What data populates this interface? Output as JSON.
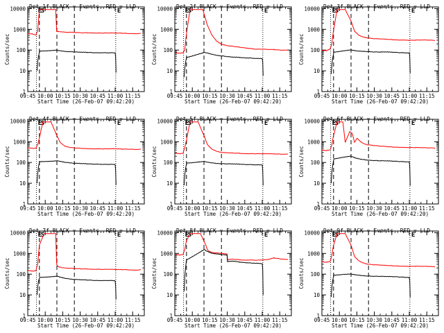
{
  "colors": {
    "events": "#000000",
    "lld": "#ff0000",
    "axis": "#000000",
    "background": "#ffffff"
  },
  "chart_data": {
    "type": "line",
    "grid": false,
    "shared": {
      "xlabel": "Start Time (26-Feb-07 09:42:20)",
      "ylabel": "Counts/sec",
      "x_ticks": [
        "09:45",
        "10:00",
        "10:15",
        "10:30",
        "10:45",
        "11:00",
        "11:15"
      ],
      "x_tick_minutes": [
        0,
        15,
        30,
        45,
        60,
        75,
        90
      ],
      "xlim_minutes": [
        0,
        100
      ],
      "yscale": "log",
      "ylim": [
        1,
        12000
      ],
      "y_ticks": [
        "1",
        "10",
        "100",
        "1000",
        "10000"
      ],
      "y_tick_values": [
        1,
        10,
        100,
        1000,
        10000
      ],
      "vlines": [
        {
          "minute": 7.5,
          "style": "dotted",
          "label": "E"
        },
        {
          "minute": 10,
          "style": "dashed",
          "label": "S"
        },
        {
          "minute": 25,
          "style": "dashed",
          "label": ""
        },
        {
          "minute": 40,
          "style": "dashed",
          "label": ""
        },
        {
          "minute": 75.5,
          "style": "dotted",
          "label": "E"
        }
      ]
    },
    "panels": [
      {
        "title": "Det 1f BLACK = Events, RED = LLD",
        "series": [
          {
            "name": "LLD",
            "color": "#ff0000",
            "x": [
              0,
              4,
              7,
              8.5,
              10,
              15,
              24,
              24.8,
              26,
              35,
              40,
              45,
              50,
              55,
              60,
              65,
              70,
              75,
              80,
              85,
              90,
              95,
              97
            ],
            "y": [
              600,
              600,
              540,
              800,
              9000,
              9000,
              9000,
              820,
              760,
              720,
              700,
              680,
              690,
              680,
              670,
              660,
              660,
              650,
              650,
              640,
              630,
              630,
              620
            ]
          },
          {
            "name": "Events",
            "color": "#000000",
            "x": [
              8,
              8.6,
              9.2,
              9.8,
              10.3,
              25.2,
              26,
              35,
              40,
              45,
              50,
              55,
              60,
              65,
              70,
              75,
              75.4,
              75.8
            ],
            "y": [
              10,
              28,
              50,
              70,
              90,
              100,
              95,
              85,
              80,
              78,
              77,
              76,
              75,
              76,
              74,
              74,
              45,
              8
            ]
          }
        ]
      },
      {
        "title": "Det 2f BLACK = Events, RED = LLD",
        "series": [
          {
            "name": "LLD",
            "color": "#ff0000",
            "x": [
              0,
              4,
              7,
              8.5,
              10,
              13,
              24,
              28,
              32,
              36,
              40,
              45,
              50,
              55,
              60,
              65,
              70,
              75,
              80,
              85,
              90,
              95,
              97
            ],
            "y": [
              75,
              72,
              75,
              100,
              600,
              9000,
              9000,
              1500,
              500,
              260,
              190,
              160,
              150,
              140,
              130,
              120,
              110,
              110,
              105,
              105,
              100,
              100,
              98
            ]
          },
          {
            "name": "Events",
            "color": "#000000",
            "x": [
              8,
              8.6,
              9.2,
              9.8,
              10.3,
              25.2,
              28,
              32,
              36,
              40,
              45,
              50,
              55,
              60,
              65,
              70,
              75,
              75.4,
              75.8
            ],
            "y": [
              5,
              13,
              25,
              38,
              45,
              75,
              70,
              62,
              56,
              53,
              48,
              45,
              44,
              42,
              42,
              40,
              40,
              26,
              6
            ]
          }
        ]
      },
      {
        "title": "Det 3f BLACK = Events, RED = LLD",
        "series": [
          {
            "name": "LLD",
            "color": "#ff0000",
            "x": [
              0,
              4,
              7,
              8.5,
              10,
              13,
              20,
              25,
              28,
              32,
              36,
              40,
              45,
              50,
              55,
              60,
              65,
              70,
              75,
              80,
              85,
              90,
              95,
              97
            ],
            "y": [
              100,
              95,
              110,
              200,
              900,
              9000,
              9000,
              2500,
              800,
              500,
              420,
              380,
              350,
              340,
              330,
              320,
              310,
              310,
              300,
              300,
              300,
              300,
              295,
              295
            ]
          },
          {
            "name": "Events",
            "color": "#000000",
            "x": [
              8,
              8.6,
              9.2,
              9.8,
              10.3,
              25.2,
              28,
              32,
              36,
              40,
              45,
              50,
              55,
              60,
              65,
              70,
              75,
              75.4,
              75.8
            ],
            "y": [
              7,
              20,
              40,
              60,
              80,
              100,
              95,
              90,
              88,
              85,
              82,
              80,
              80,
              78,
              76,
              75,
              74,
              40,
              8
            ]
          }
        ]
      },
      {
        "title": "Det 4f BLACK = Events, RED = LLD",
        "series": [
          {
            "name": "LLD",
            "color": "#ff0000",
            "x": [
              0,
              4,
              7,
              8.5,
              10,
              13,
              20,
              25,
              28,
              32,
              36,
              40,
              45,
              50,
              55,
              60,
              65,
              70,
              75,
              80,
              85,
              90,
              95,
              97
            ],
            "y": [
              500,
              480,
              500,
              700,
              1500,
              9000,
              9000,
              2000,
              900,
              600,
              520,
              500,
              480,
              470,
              460,
              460,
              450,
              450,
              450,
              440,
              440,
              440,
              430,
              430
            ]
          },
          {
            "name": "Events",
            "color": "#000000",
            "x": [
              8,
              8.6,
              9.2,
              9.8,
              10.3,
              25.2,
              28,
              32,
              36,
              40,
              45,
              50,
              55,
              60,
              65,
              70,
              75,
              75.4,
              75.8
            ],
            "y": [
              10,
              30,
              60,
              90,
              110,
              120,
              110,
              100,
              95,
              90,
              88,
              86,
              84,
              84,
              82,
              82,
              80,
              40,
              8
            ]
          }
        ]
      },
      {
        "title": "Det 5f BLACK = Events, RED = LLD",
        "series": [
          {
            "name": "LLD",
            "color": "#ff0000",
            "x": [
              0,
              4,
              7,
              8.5,
              10,
              13,
              20,
              25,
              28,
              32,
              36,
              40,
              45,
              50,
              55,
              60,
              65,
              70,
              75,
              80,
              85,
              90,
              95,
              97
            ],
            "y": [
              280,
              270,
              280,
              500,
              1200,
              9000,
              9000,
              2000,
              700,
              420,
              340,
              300,
              290,
              280,
              280,
              270,
              270,
              265,
              260,
              260,
              255,
              255,
              250,
              250
            ]
          },
          {
            "name": "Events",
            "color": "#000000",
            "x": [
              8,
              8.6,
              9.2,
              9.8,
              10.3,
              25.2,
              28,
              32,
              36,
              40,
              45,
              50,
              55,
              60,
              65,
              70,
              75,
              75.4,
              75.8
            ],
            "y": [
              8,
              25,
              50,
              75,
              95,
              110,
              100,
              95,
              90,
              88,
              85,
              84,
              82,
              80,
              80,
              78,
              78,
              40,
              8
            ]
          }
        ]
      },
      {
        "title": "Det 6f BLACK = Events, RED = LLD",
        "series": [
          {
            "name": "LLD",
            "color": "#ff0000",
            "x": [
              0,
              4,
              7,
              8.5,
              10,
              13,
              18,
              20,
              22,
              24,
              26,
              28,
              30,
              33,
              36,
              40,
              45,
              50,
              55,
              60,
              65,
              70,
              75,
              80,
              85,
              90,
              95,
              97
            ],
            "y": [
              400,
              380,
              400,
              700,
              2000,
              9000,
              9000,
              900,
              1800,
              3000,
              2600,
              900,
              1500,
              1000,
              800,
              700,
              650,
              600,
              580,
              560,
              550,
              540,
              530,
              520,
              510,
              500,
              500,
              490
            ]
          },
          {
            "name": "Events",
            "color": "#000000",
            "x": [
              8,
              8.6,
              9.2,
              9.8,
              10.3,
              25.2,
              28,
              32,
              36,
              40,
              45,
              50,
              55,
              60,
              65,
              70,
              75,
              75.4,
              75.8
            ],
            "y": [
              10,
              35,
              70,
              110,
              150,
              200,
              170,
              150,
              140,
              130,
              125,
              120,
              118,
              115,
              112,
              110,
              108,
              50,
              8
            ]
          }
        ]
      },
      {
        "title": "Det 7f BLACK = Events, RED = LLD",
        "series": [
          {
            "name": "LLD",
            "color": "#ff0000",
            "x": [
              0,
              4,
              7,
              8.5,
              10,
              14,
              24,
              24.8,
              26,
              30,
              35,
              40,
              45,
              50,
              55,
              60,
              65,
              70,
              75,
              80,
              85,
              90,
              95,
              97
            ],
            "y": [
              150,
              140,
              150,
              300,
              2500,
              9000,
              9000,
              300,
              230,
              200,
              190,
              185,
              180,
              180,
              175,
              175,
              170,
              170,
              165,
              165,
              165,
              160,
              160,
              160
            ]
          },
          {
            "name": "Events",
            "color": "#000000",
            "x": [
              8,
              8.6,
              9.2,
              9.8,
              10.3,
              25.2,
              28,
              32,
              36,
              40,
              45,
              50,
              55,
              60,
              65,
              70,
              75,
              75.4,
              75.8
            ],
            "y": [
              10,
              25,
              45,
              60,
              70,
              80,
              70,
              62,
              58,
              55,
              53,
              52,
              51,
              50,
              50,
              50,
              48,
              25,
              6
            ]
          }
        ]
      },
      {
        "title": "Det 8f BLACK = Events, RED = LLD",
        "series": [
          {
            "name": "LLD",
            "color": "#ff0000",
            "x": [
              0,
              4,
              7,
              8.5,
              10,
              13,
              22,
              26,
              28,
              30,
              32,
              35,
              40,
              44.8,
              45.2,
              50,
              55,
              60,
              65,
              70,
              75,
              80,
              85,
              90,
              95,
              97
            ],
            "y": [
              900,
              850,
              900,
              1500,
              4000,
              9000,
              9000,
              3000,
              1500,
              1200,
              1100,
              1050,
              1000,
              950,
              500,
              520,
              500,
              480,
              490,
              470,
              480,
              500,
              600,
              550,
              520,
              500
            ]
          },
          {
            "name": "Events",
            "color": "#000000",
            "x": [
              8,
              8.6,
              9.2,
              9.8,
              10.3,
              25.2,
              28,
              32,
              36,
              40,
              44.8,
              45.2,
              50,
              55,
              60,
              65,
              70,
              75,
              75.4,
              75.8
            ],
            "y": [
              15,
              80,
              200,
              400,
              500,
              1500,
              1200,
              1000,
              950,
              900,
              850,
              400,
              420,
              380,
              360,
              350,
              340,
              330,
              150,
              10
            ]
          }
        ]
      },
      {
        "title": "Det 9f BLACK = Events, RED = LLD",
        "series": [
          {
            "name": "LLD",
            "color": "#ff0000",
            "x": [
              0,
              4,
              7,
              8.5,
              10,
              13,
              20,
              25,
              28,
              32,
              36,
              40,
              45,
              50,
              55,
              60,
              65,
              70,
              75,
              80,
              85,
              90,
              95,
              97
            ],
            "y": [
              400,
              380,
              400,
              800,
              2500,
              9000,
              9000,
              2500,
              700,
              420,
              340,
              300,
              280,
              270,
              260,
              255,
              250,
              245,
              240,
              240,
              235,
              235,
              230,
              230
            ]
          },
          {
            "name": "Events",
            "color": "#000000",
            "x": [
              8,
              8.6,
              9.2,
              9.8,
              10.3,
              25.2,
              28,
              32,
              36,
              40,
              45,
              50,
              55,
              60,
              65,
              70,
              75,
              75.4,
              75.8
            ],
            "y": [
              8,
              25,
              50,
              70,
              90,
              100,
              95,
              90,
              85,
              82,
              80,
              78,
              76,
              75,
              74,
              72,
              70,
              40,
              8
            ]
          }
        ]
      }
    ]
  }
}
